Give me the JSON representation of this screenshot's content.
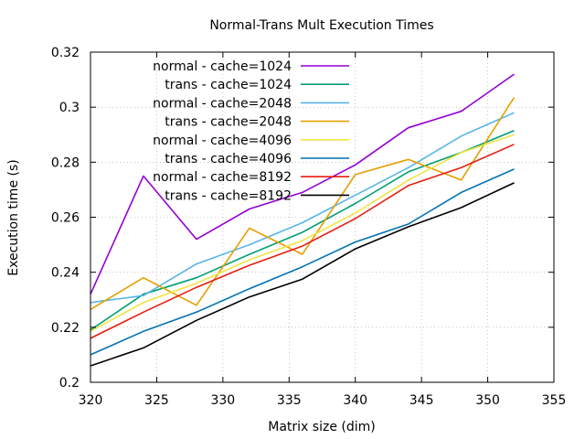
{
  "chart_data": {
    "type": "line",
    "title": "Normal-Trans Mult Execution Times",
    "xlabel": "Matrix size (dim)",
    "ylabel": "Execution time (s)",
    "xlim": [
      320,
      355
    ],
    "ylim": [
      0.2,
      0.32
    ],
    "xticks": [
      320,
      325,
      330,
      335,
      340,
      345,
      350,
      355
    ],
    "yticks": [
      0.2,
      0.22,
      0.24,
      0.26,
      0.28,
      0.3,
      0.32
    ],
    "xtick_labels": [
      "320",
      "325",
      "330",
      "335",
      "340",
      "345",
      "350",
      "355"
    ],
    "ytick_labels": [
      "0.2",
      "0.22",
      "0.24",
      "0.26",
      "0.28",
      "0.3",
      "0.32"
    ],
    "grid": true,
    "legend_position": "top-left",
    "x": [
      320,
      324,
      328,
      332,
      336,
      340,
      344,
      348,
      352
    ],
    "series": [
      {
        "name": "normal - cache=1024",
        "color": "#9400d3",
        "values": [
          0.232,
          0.275,
          0.252,
          0.263,
          0.269,
          0.279,
          0.2925,
          0.2985,
          0.312
        ]
      },
      {
        "name": "trans - cache=1024",
        "color": "#009e73",
        "values": [
          0.219,
          0.232,
          0.238,
          0.2465,
          0.2545,
          0.265,
          0.2765,
          0.2835,
          0.2915
        ]
      },
      {
        "name": "normal - cache=2048",
        "color": "#56b4e9",
        "values": [
          0.229,
          0.2315,
          0.243,
          0.25,
          0.258,
          0.268,
          0.278,
          0.2895,
          0.298
        ]
      },
      {
        "name": "trans - cache=2048",
        "color": "#e69f00",
        "values": [
          0.2265,
          0.238,
          0.228,
          0.256,
          0.2465,
          0.2755,
          0.281,
          0.2735,
          0.3035
        ]
      },
      {
        "name": "normal - cache=4096",
        "color": "#f0e442",
        "values": [
          0.2185,
          0.229,
          0.236,
          0.2445,
          0.2515,
          0.2615,
          0.2735,
          0.2835,
          0.29
        ]
      },
      {
        "name": "trans - cache=4096",
        "color": "#0072b2",
        "values": [
          0.21,
          0.2185,
          0.2255,
          0.234,
          0.242,
          0.251,
          0.2575,
          0.269,
          0.2775
        ]
      },
      {
        "name": "normal - cache=8192",
        "color": "#e51e10",
        "values": [
          0.216,
          0.2255,
          0.2345,
          0.2425,
          0.2495,
          0.2595,
          0.2715,
          0.278,
          0.2865
        ]
      },
      {
        "name": "trans - cache=8192",
        "color": "#000000",
        "values": [
          0.206,
          0.2125,
          0.2225,
          0.231,
          0.2375,
          0.2485,
          0.2565,
          0.2635,
          0.2725
        ]
      }
    ]
  }
}
